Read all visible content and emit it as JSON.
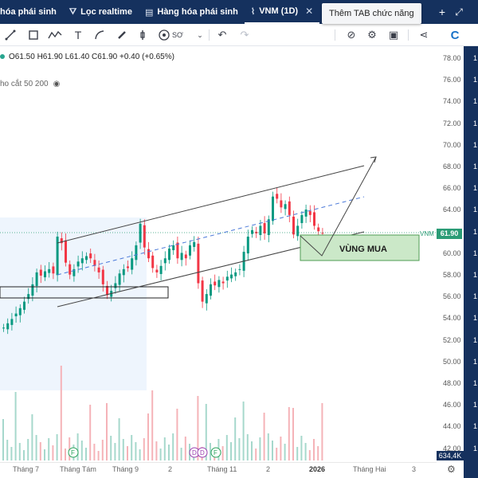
{
  "tabs": [
    {
      "label": "hóa phái sinh",
      "icon": "",
      "active": false
    },
    {
      "label": "Lọc realtime",
      "icon": "filter-icon",
      "active": false
    },
    {
      "label": "Hàng hóa phái sinh",
      "icon": "table-icon",
      "active": false
    },
    {
      "label": "VNM (1D)",
      "icon": "chart-icon",
      "active": true
    }
  ],
  "tooltip": "Thêm TAB chức năng",
  "toolbar": {
    "style_label": "SƠ"
  },
  "ohlc": {
    "text": "O61.50  H61.90  L61.40  C61.90  +0.40 (+0.65%)"
  },
  "ma_label": "ho cắt 50 200",
  "symbol": "VNM",
  "last_price": "61.90",
  "volume_label": "634,4K",
  "annotation": "VÙNG MUA",
  "price_labels": [
    "78.00",
    "76.00",
    "74.00",
    "72.00",
    "70.00",
    "68.00",
    "66.00",
    "64.00",
    "62.00",
    "60.00",
    "58.00",
    "56.00",
    "54.00",
    "52.00",
    "50.00",
    "48.00",
    "46.00",
    "44.00",
    "42.00"
  ],
  "x_labels": [
    "Tháng 7",
    "Tháng Tám",
    "Tháng 9",
    "2",
    "Tháng 11",
    "2",
    "2026",
    "Tháng Hai",
    "3"
  ],
  "events": [
    "F",
    "D",
    "D",
    "F"
  ],
  "colors": {
    "up": "#089981",
    "down": "#f23645",
    "tabbar": "#15315e",
    "zone": "#cbe8c8"
  },
  "chart_data": {
    "type": "candlestick",
    "symbol": "VNM",
    "interval": "1D",
    "ylim": [
      42,
      79
    ],
    "last": 61.9,
    "open": 61.5,
    "high": 61.9,
    "low": 61.4,
    "close": 61.9,
    "change": 0.4,
    "change_pct": 0.65,
    "volume": "634,4K",
    "close_path": [
      53.2,
      53.6,
      54.0,
      54.5,
      55.0,
      55.6,
      56.3,
      57.2,
      58.3,
      58.0,
      58.4,
      58.6,
      58.2,
      61.6,
      61.0,
      59.2,
      58.1,
      58.6,
      59.3,
      59.6,
      59.8,
      59.6,
      58.9,
      58.3,
      57.2,
      56.2,
      56.6,
      57.3,
      58.2,
      58.6,
      58.7,
      59.6,
      60.8,
      62.8,
      60.6,
      59.6,
      58.7,
      58.3,
      58.9,
      59.6,
      60.5,
      60.8,
      59.6,
      60.1,
      59.6,
      60.8,
      61.1,
      57.3,
      55.6,
      56.3,
      57.2,
      57.1,
      57.6,
      57.3,
      57.9,
      58.1,
      58.3,
      58.6,
      60.2,
      61.6,
      62.2,
      61.9,
      62.6,
      61.9,
      63.2,
      65.3,
      65.1,
      64.3,
      64.6,
      63.6,
      61.8,
      62.6,
      63.6,
      64.1,
      63.6,
      62.6,
      62.1,
      61.9
    ]
  }
}
